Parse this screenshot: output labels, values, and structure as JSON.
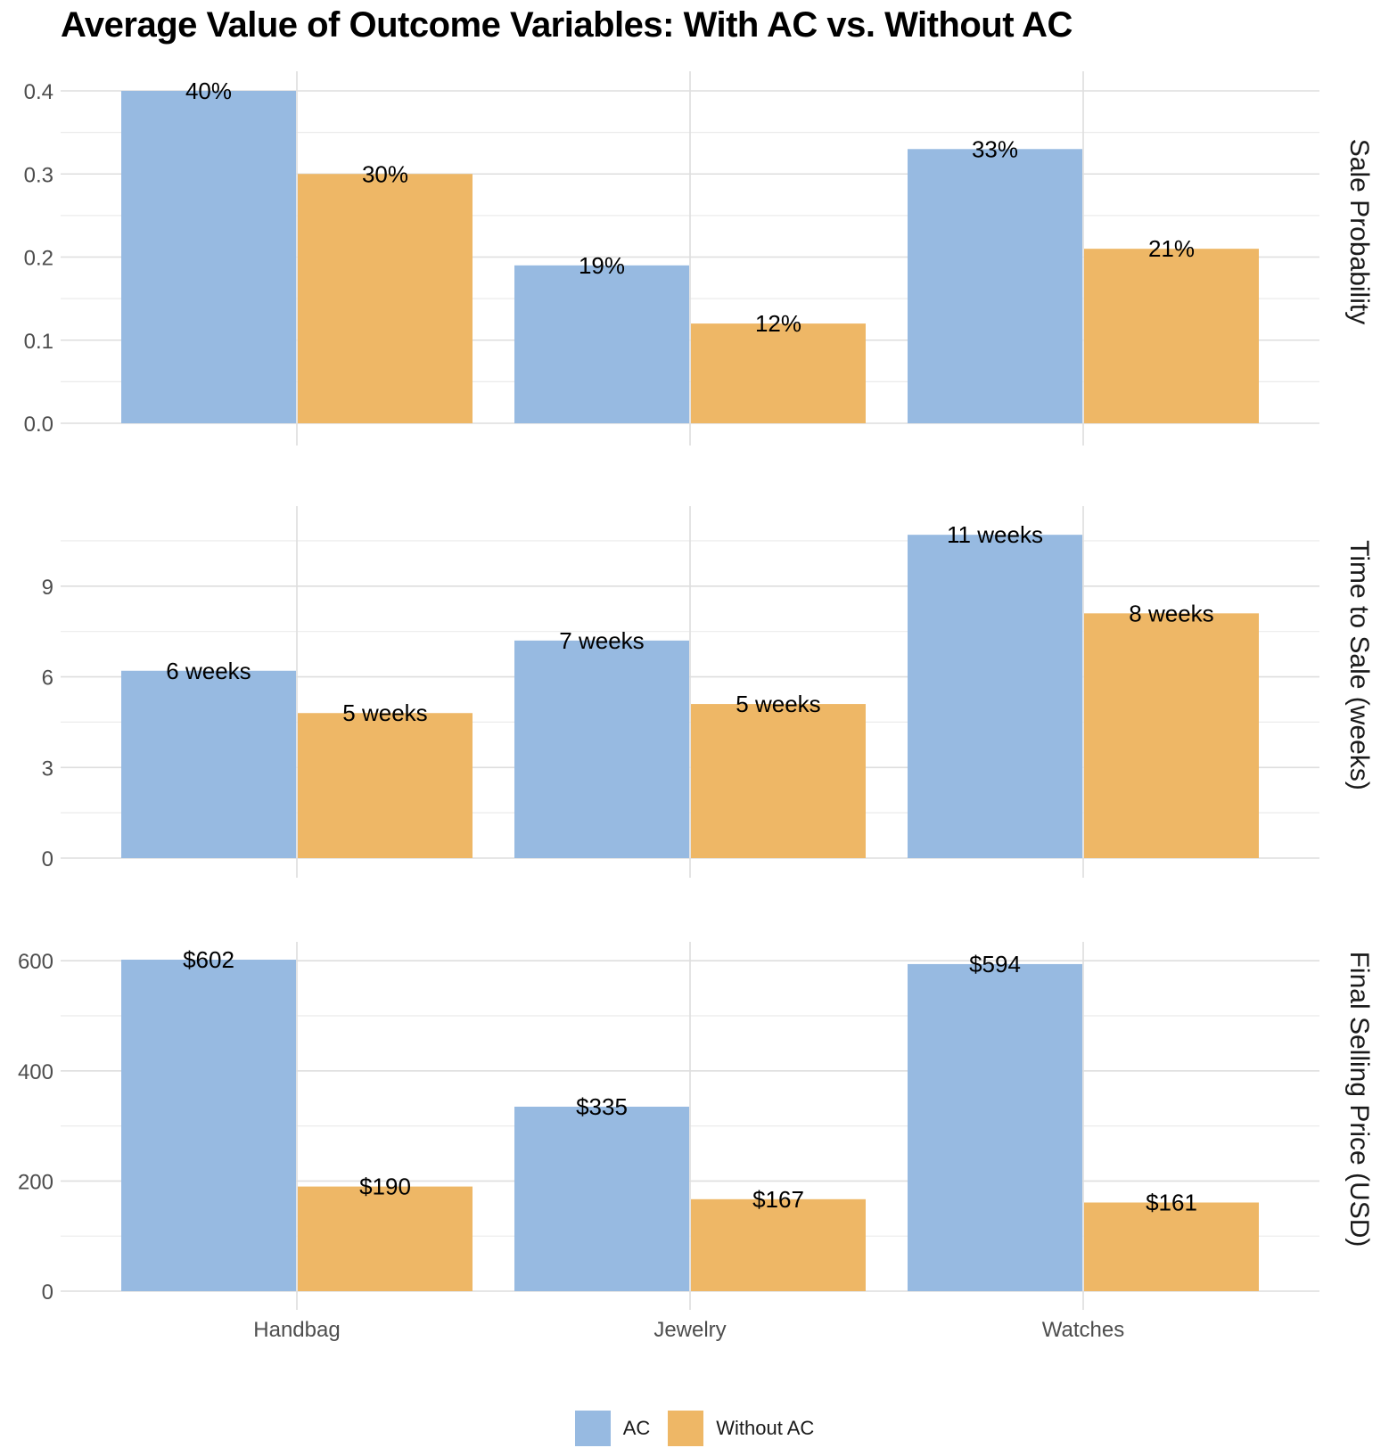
{
  "chart_data": {
    "type": "bar",
    "title": "Average Value of Outcome Variables: With AC vs. Without AC",
    "categories": [
      "Handbag",
      "Jewelry",
      "Watches"
    ],
    "legend": {
      "position": "bottom",
      "entries": [
        {
          "name": "AC",
          "color": "#97bae1"
        },
        {
          "name": "Without AC",
          "color": "#eeb766"
        }
      ]
    },
    "grid": true,
    "panels": [
      {
        "strip_label": "Sale Probability",
        "ylim": [
          0,
          0.4
        ],
        "yticks": [
          0.0,
          0.1,
          0.2,
          0.3,
          0.4
        ],
        "ytick_labels": [
          "0.0",
          "0.1",
          "0.2",
          "0.3",
          "0.4"
        ],
        "series": [
          {
            "name": "AC",
            "values": [
              0.4,
              0.19,
              0.33
            ],
            "labels": [
              "40%",
              "19%",
              "33%"
            ]
          },
          {
            "name": "Without AC",
            "values": [
              0.3,
              0.12,
              0.21
            ],
            "labels": [
              "30%",
              "12%",
              "21%"
            ]
          }
        ]
      },
      {
        "strip_label": "Time to Sale (weeks)",
        "ylim": [
          0,
          11
        ],
        "yticks": [
          0,
          3,
          6,
          9
        ],
        "ytick_labels": [
          "0",
          "3",
          "6",
          "9"
        ],
        "series": [
          {
            "name": "AC",
            "values": [
              6.2,
              7.2,
              10.7
            ],
            "labels": [
              "6 weeks",
              "7 weeks",
              "11 weeks"
            ]
          },
          {
            "name": "Without AC",
            "values": [
              4.8,
              5.1,
              8.1
            ],
            "labels": [
              "5 weeks",
              "5 weeks",
              "8 weeks"
            ]
          }
        ]
      },
      {
        "strip_label": "Final Selling Price (USD)",
        "ylim": [
          0,
          602
        ],
        "yticks": [
          0,
          200,
          400,
          600
        ],
        "ytick_labels": [
          "0",
          "200",
          "400",
          "600"
        ],
        "series": [
          {
            "name": "AC",
            "values": [
              602,
              335,
              594
            ],
            "labels": [
              "$602",
              "$335",
              "$594"
            ]
          },
          {
            "name": "Without AC",
            "values": [
              190,
              167,
              161
            ],
            "labels": [
              "$190",
              "$167",
              "$161"
            ]
          }
        ]
      }
    ]
  }
}
